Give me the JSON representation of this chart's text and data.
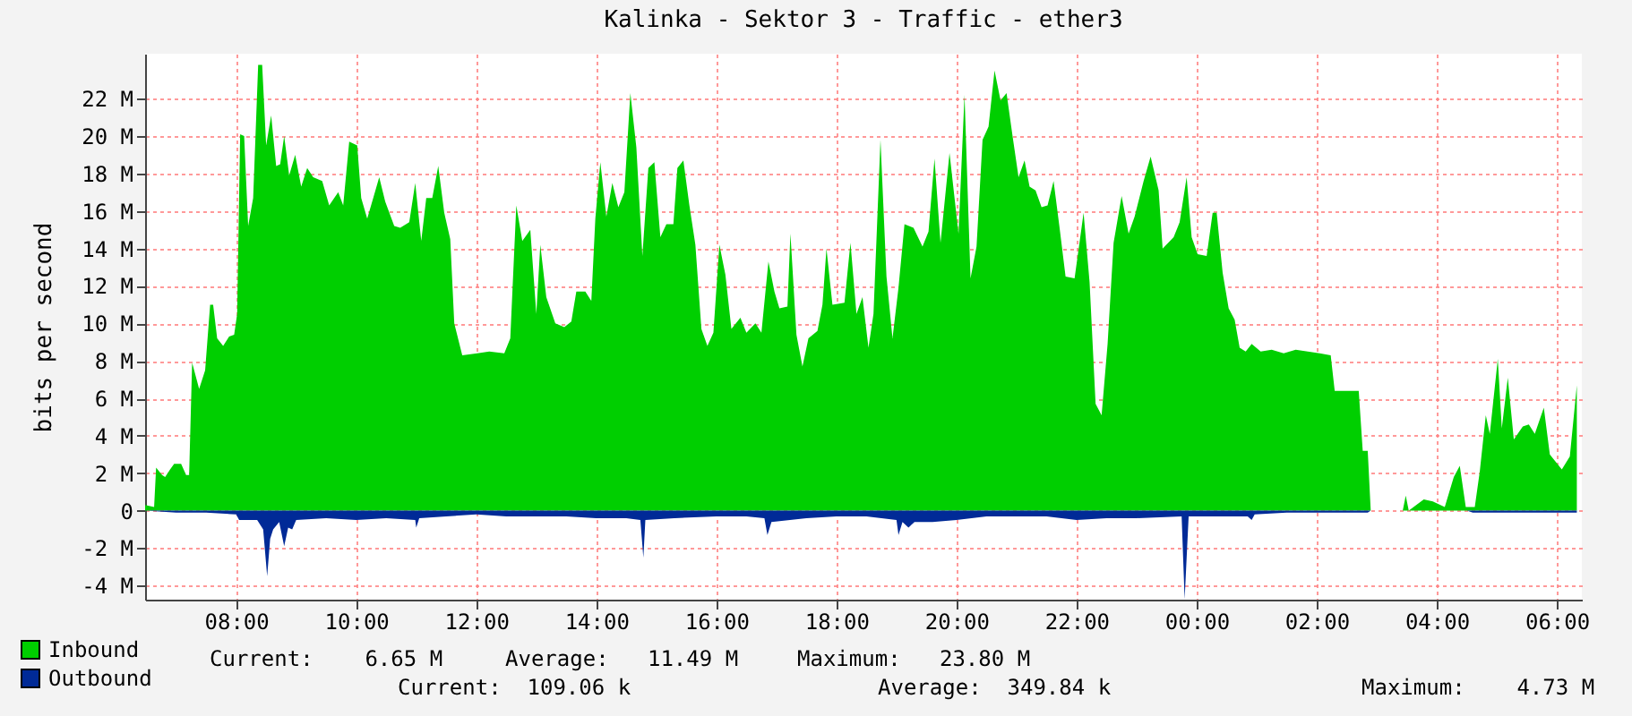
{
  "chart_data": {
    "type": "area",
    "title": "Kalinka - Sektor 3 - Traffic - ether3",
    "ylabel": "bits per second",
    "xlim": [
      "--01-01T06:29",
      "--01-02T06:25"
    ],
    "ylim": [
      -4.75,
      24.4
    ],
    "xticks": [
      {
        "value": "--01-01T08:00",
        "label": "08:00"
      },
      {
        "value": "--01-01T10:00",
        "label": "10:00"
      },
      {
        "value": "--01-01T12:00",
        "label": "12:00"
      },
      {
        "value": "--01-01T14:00",
        "label": "14:00"
      },
      {
        "value": "--01-01T16:00",
        "label": "16:00"
      },
      {
        "value": "--01-01T18:00",
        "label": "18:00"
      },
      {
        "value": "--01-01T20:00",
        "label": "20:00"
      },
      {
        "value": "--01-01T22:00",
        "label": "22:00"
      },
      {
        "value": "--01-02T00:00",
        "label": "00:00"
      },
      {
        "value": "--01-02T02:00",
        "label": "02:00"
      },
      {
        "value": "--01-02T04:00",
        "label": "04:00"
      },
      {
        "value": "--01-02T06:00",
        "label": "06:00"
      }
    ],
    "yticks": [
      {
        "value": -4,
        "label": "-4 M"
      },
      {
        "value": -2,
        "label": "-2 M"
      },
      0,
      {
        "value": 2,
        "label": "2 M"
      },
      {
        "value": 4,
        "label": "4 M"
      },
      {
        "value": 6,
        "label": "6 M"
      },
      {
        "value": 8,
        "label": "8 M"
      },
      {
        "value": 10,
        "label": "10 M"
      },
      {
        "value": 12,
        "label": "12 M"
      },
      {
        "value": 14,
        "label": "14 M"
      },
      {
        "value": 16,
        "label": "16 M"
      },
      {
        "value": 18,
        "label": "18 M"
      },
      {
        "value": 20,
        "label": "20 M"
      },
      {
        "value": 22,
        "label": "22 M"
      }
    ],
    "grid": true,
    "legend": "bottom",
    "annotations": [
      "Current:    6.65 M",
      "Average:   11.49 M",
      "Maximum:   23.80 M",
      "Current:  109.06 k",
      "Average:  349.84 k",
      "Maximum:    4.73 M"
    ],
    "series": [
      {
        "name": "Inbound",
        "color": "#00cf00",
        "x": [
          "--01-01T06:29",
          "--01-01T06:38",
          "--01-01T06:40",
          "--01-01T06:46",
          "--01-01T06:49",
          "--01-01T06:54",
          "--01-01T06:58",
          "--01-01T07:05",
          "--01-01T07:10",
          "--01-01T07:13",
          "--01-01T07:16",
          "--01-01T07:23",
          "--01-01T07:29",
          "--01-01T07:34",
          "--01-01T07:37",
          "--01-01T07:41",
          "--01-01T07:47",
          "--01-01T07:53",
          "--01-01T07:58",
          "--01-01T08:01",
          "--01-01T08:04",
          "--01-01T08:08",
          "--01-01T08:12",
          "--01-01T08:17",
          "--01-01T08:22",
          "--01-01T08:26",
          "--01-01T08:30",
          "--01-01T08:35",
          "--01-01T08:40",
          "--01-01T08:44",
          "--01-01T08:48",
          "--01-01T08:53",
          "--01-01T08:59",
          "--01-01T09:05",
          "--01-01T09:11",
          "--01-01T09:17",
          "--01-01T09:26",
          "--01-01T09:33",
          "--01-01T09:42",
          "--01-01T09:47",
          "--01-01T09:53",
          "--01-01T10:01",
          "--01-01T10:05",
          "--01-01T10:11",
          "--01-01T10:17",
          "--01-01T10:23",
          "--01-01T10:29",
          "--01-01T10:38",
          "--01-01T10:44",
          "--01-01T10:53",
          "--01-01T10:59",
          "--01-01T11:05",
          "--01-01T11:10",
          "--01-01T11:16",
          "--01-01T11:22",
          "--01-01T11:28",
          "--01-01T11:34",
          "--01-01T11:38",
          "--01-01T11:46",
          "--01-01T12:01",
          "--01-01T12:13",
          "--01-01T12:28",
          "--01-01T12:34",
          "--01-01T12:40",
          "--01-01T12:46",
          "--01-01T12:54",
          "--01-01T13:00",
          "--01-01T13:04",
          "--01-01T13:10",
          "--01-01T13:19",
          "--01-01T13:28",
          "--01-01T13:35",
          "--01-01T13:40",
          "--01-01T13:49",
          "--01-01T13:55",
          "--01-01T13:59",
          "--01-01T14:04",
          "--01-01T14:10",
          "--01-01T14:16",
          "--01-01T14:22",
          "--01-01T14:28",
          "--01-01T14:34",
          "--01-01T14:40",
          "--01-01T14:46",
          "--01-01T14:52",
          "--01-01T14:58",
          "--01-01T15:04",
          "--01-01T15:10",
          "--01-01T15:17",
          "--01-01T15:21",
          "--01-01T15:27",
          "--01-01T15:33",
          "--01-01T15:39",
          "--01-01T15:45",
          "--01-01T15:51",
          "--01-01T15:57",
          "--01-01T16:03",
          "--01-01T16:09",
          "--01-01T16:15",
          "--01-01T16:24",
          "--01-01T16:30",
          "--01-01T16:39",
          "--01-01T16:45",
          "--01-01T16:52",
          "--01-01T16:58",
          "--01-01T17:03",
          "--01-01T17:11",
          "--01-01T17:14",
          "--01-01T17:20",
          "--01-01T17:26",
          "--01-01T17:32",
          "--01-01T17:41",
          "--01-01T17:46",
          "--01-01T17:50",
          "--01-01T17:56",
          "--01-01T18:08",
          "--01-01T18:14",
          "--01-01T18:20",
          "--01-01T18:26",
          "--01-01T18:32",
          "--01-01T18:37",
          "--01-01T18:44",
          "--01-01T18:50",
          "--01-01T18:56",
          "--01-01T19:02",
          "--01-01T19:08",
          "--01-01T19:17",
          "--01-01T19:26",
          "--01-01T19:32",
          "--01-01T19:38",
          "--01-01T19:44",
          "--01-01T19:53",
          "--01-01T20:02",
          "--01-01T20:08",
          "--01-01T20:14",
          "--01-01T20:20",
          "--01-01T20:26",
          "--01-01T20:32",
          "--01-01T20:38",
          "--01-01T20:44",
          "--01-01T20:50",
          "--01-01T20:56",
          "--01-01T21:02",
          "--01-01T21:08",
          "--01-01T21:13",
          "--01-01T21:19",
          "--01-01T21:25",
          "--01-01T21:31",
          "--01-01T21:37",
          "--01-01T21:43",
          "--01-01T21:49",
          "--01-01T21:58",
          "--01-01T22:07",
          "--01-01T22:13",
          "--01-01T22:19",
          "--01-01T22:25",
          "--01-01T22:31",
          "--01-01T22:37",
          "--01-01T22:45",
          "--01-01T22:52",
          "--01-01T22:58",
          "--01-01T23:07",
          "--01-01T23:14",
          "--01-01T23:22",
          "--01-01T23:26",
          "--01-01T23:37",
          "--01-01T23:43",
          "--01-01T23:50",
          "--01-01T23:55",
          "--01-02T00:01",
          "--01-02T00:10",
          "--01-02T00:16",
          "--01-02T00:20",
          "--01-02T00:26",
          "--01-02T00:32",
          "--01-02T00:38",
          "--01-02T00:43",
          "--01-02T00:49",
          "--01-02T00:55",
          "--01-02T01:04",
          "--01-02T01:15",
          "--01-02T01:27",
          "--01-02T01:39",
          "--01-02T01:51",
          "--01-02T02:03",
          "--01-02T02:14",
          "--01-02T02:18",
          "--01-02T02:42",
          "--01-02T02:46",
          "--01-02T02:51",
          "--01-02T02:54",
          "--01-02T03:26",
          "--01-02T03:29",
          "--01-02T03:32",
          "--01-02T03:47",
          "--01-02T03:56",
          "--01-02T04:08",
          "--01-02T04:17",
          "--01-02T04:23",
          "--01-02T04:29",
          "--01-02T04:38",
          "--01-02T04:43",
          "--01-02T04:49",
          "--01-02T04:53",
          "--01-02T05:01",
          "--01-02T05:05",
          "--01-02T05:11",
          "--01-02T05:17",
          "--01-02T05:26",
          "--01-02T05:32",
          "--01-02T05:38",
          "--01-02T05:47",
          "--01-02T05:53",
          "--01-02T06:05",
          "--01-02T06:13",
          "--01-02T06:20"
        ],
        "values": [
          0.3,
          0.2,
          2.3,
          1.9,
          1.8,
          2.2,
          2.5,
          2.5,
          1.9,
          1.9,
          7.9,
          6.5,
          7.5,
          11.0,
          11.0,
          9.2,
          8.8,
          9.3,
          9.4,
          10.5,
          20.1,
          20.0,
          15.2,
          16.7,
          23.8,
          23.8,
          19.5,
          21.1,
          18.4,
          18.5,
          20.0,
          17.9,
          19.0,
          17.3,
          18.3,
          17.8,
          17.6,
          16.3,
          17.0,
          16.3,
          19.7,
          19.5,
          16.7,
          15.6,
          16.7,
          17.8,
          16.5,
          15.2,
          15.1,
          15.4,
          17.5,
          14.4,
          16.7,
          16.7,
          18.4,
          15.9,
          14.5,
          10.0,
          8.3,
          8.4,
          8.5,
          8.4,
          9.2,
          16.3,
          14.4,
          15.0,
          10.5,
          14.2,
          11.4,
          10.0,
          9.8,
          10.1,
          11.7,
          11.7,
          11.2,
          15.6,
          18.6,
          15.7,
          17.5,
          16.2,
          17.0,
          22.3,
          19.4,
          13.6,
          18.3,
          18.6,
          14.6,
          15.3,
          15.3,
          18.3,
          18.7,
          16.3,
          14.2,
          9.7,
          8.8,
          9.5,
          14.2,
          12.6,
          9.7,
          10.3,
          9.5,
          10.0,
          9.5,
          13.3,
          11.7,
          10.8,
          10.9,
          14.8,
          9.4,
          7.7,
          9.2,
          9.6,
          11.0,
          14.0,
          11.0,
          11.1,
          14.3,
          10.5,
          11.4,
          8.7,
          10.5,
          19.8,
          12.5,
          9.2,
          11.9,
          15.3,
          15.1,
          14.1,
          14.9,
          18.8,
          14.3,
          19.1,
          14.8,
          22.2,
          12.4,
          14.1,
          19.8,
          20.5,
          23.5,
          21.9,
          22.3,
          20.0,
          17.8,
          18.7,
          17.3,
          17.1,
          16.2,
          16.3,
          17.6,
          15.1,
          12.5,
          12.4,
          15.9,
          12.2,
          5.7,
          5.1,
          8.9,
          14.3,
          16.8,
          14.8,
          15.7,
          17.6,
          18.9,
          17.1,
          14.0,
          14.6,
          15.4,
          17.8,
          14.6,
          13.7,
          13.6,
          15.9,
          15.9,
          12.7,
          10.8,
          10.2,
          8.7,
          8.5,
          8.9,
          8.5,
          8.6,
          8.4,
          8.6,
          8.5,
          8.4,
          8.3,
          6.4,
          6.4,
          3.2,
          3.2,
          0,
          0,
          0.8,
          0,
          0.6,
          0.5,
          0.2,
          1.8,
          2.4,
          0.2,
          0.2,
          2.1,
          5.1,
          4.1,
          8.1,
          4.4,
          7.1,
          3.8,
          4.5,
          4.6,
          4.1,
          5.5,
          3.0,
          2.2,
          2.9,
          6.7
        ]
      },
      {
        "name": "Outbound",
        "color": "#002a97",
        "x": [
          "--01-01T06:29",
          "--01-01T07:00",
          "--01-01T07:30",
          "--01-01T08:00",
          "--01-01T08:03",
          "--01-01T08:21",
          "--01-01T08:27",
          "--01-01T08:31",
          "--01-01T08:34",
          "--01-01T08:37",
          "--01-01T08:43",
          "--01-01T08:48",
          "--01-01T08:52",
          "--01-01T08:56",
          "--01-01T09:00",
          "--01-01T09:30",
          "--01-01T10:00",
          "--01-01T10:30",
          "--01-01T10:59",
          "--01-01T11:00",
          "--01-01T11:03",
          "--01-01T11:30",
          "--01-01T12:00",
          "--01-01T12:30",
          "--01-01T13:00",
          "--01-01T13:30",
          "--01-01T14:00",
          "--01-01T14:30",
          "--01-01T14:44",
          "--01-01T14:47",
          "--01-01T14:49",
          "--01-01T15:18",
          "--01-01T16:00",
          "--01-01T16:30",
          "--01-01T16:48",
          "--01-01T16:51",
          "--01-01T16:55",
          "--01-01T17:30",
          "--01-01T18:00",
          "--01-01T18:30",
          "--01-01T19:00",
          "--01-01T19:02",
          "--01-01T19:06",
          "--01-01T19:12",
          "--01-01T19:18",
          "--01-01T19:36",
          "--01-01T20:00",
          "--01-01T20:30",
          "--01-01T21:00",
          "--01-01T21:30",
          "--01-01T22:00",
          "--01-01T22:30",
          "--01-01T23:00",
          "--01-01T23:45",
          "--01-01T23:48",
          "--01-01T23:52",
          "--01-02T00:18",
          "--01-02T00:51",
          "--01-02T00:55",
          "--01-02T00:58",
          "--01-02T01:30",
          "--01-02T02:00",
          "--01-02T02:51",
          "--01-02T02:54",
          "--01-02T04:30",
          "--01-02T04:36",
          "--01-02T06:20"
        ],
        "values": [
          0,
          -0.1,
          -0.1,
          -0.2,
          -0.5,
          -0.5,
          -1.0,
          -3.5,
          -1.5,
          -1.0,
          -0.6,
          -1.9,
          -0.9,
          -1.0,
          -0.5,
          -0.4,
          -0.5,
          -0.4,
          -0.5,
          -0.9,
          -0.4,
          -0.3,
          -0.2,
          -0.3,
          -0.3,
          -0.3,
          -0.4,
          -0.4,
          -0.5,
          -2.5,
          -0.5,
          -0.4,
          -0.3,
          -0.3,
          -0.4,
          -1.3,
          -0.6,
          -0.4,
          -0.3,
          -0.3,
          -0.5,
          -1.3,
          -0.6,
          -0.9,
          -0.6,
          -0.6,
          -0.5,
          -0.3,
          -0.3,
          -0.3,
          -0.5,
          -0.4,
          -0.4,
          -0.3,
          -4.73,
          -0.3,
          -0.3,
          -0.3,
          -0.5,
          -0.2,
          -0.1,
          -0.1,
          -0.1,
          0,
          0,
          -0.1,
          -0.1
        ]
      }
    ]
  }
}
